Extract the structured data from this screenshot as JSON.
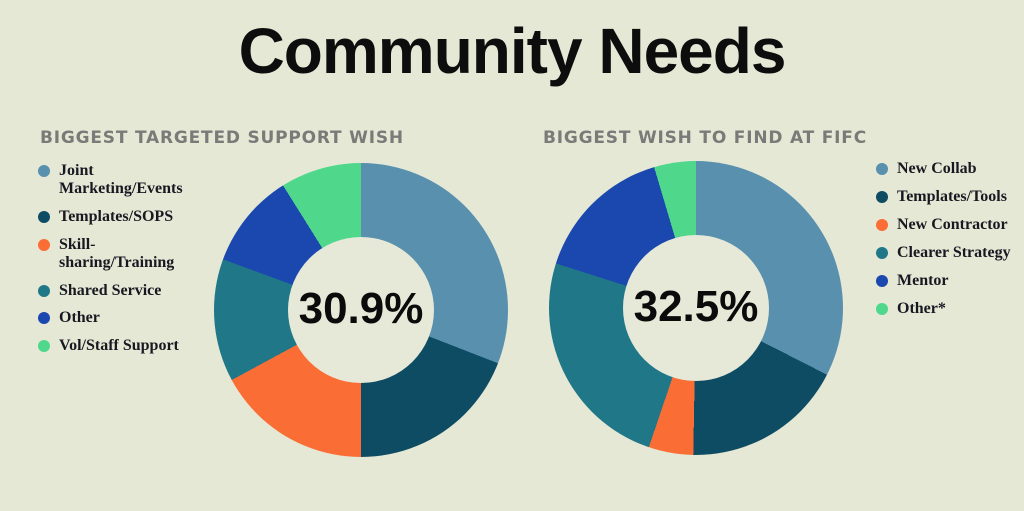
{
  "page": {
    "title": "Community Needs",
    "background": "#e6e8d6",
    "title_color": "#0d0d0d",
    "section_title_color": "#7a7a78",
    "legend_text_color": "#181821"
  },
  "chart_data": [
    {
      "type": "pie",
      "subtype": "donut",
      "title": "BIGGEST TARGETED SUPPORT WISH",
      "center_label": "30.9%",
      "legend_position": "left",
      "start_angle_deg": 0,
      "direction": "clockwise",
      "hole_ratio": 0.5,
      "labels": [
        "Joint Marketing/Events",
        "Templates/SOPS",
        "Skill-sharing/Training",
        "Shared Service",
        "Other",
        "Vol/Staff Support"
      ],
      "values": [
        30.9,
        19.1,
        17.1,
        13.5,
        10.5,
        8.9
      ],
      "colors": [
        "#5890ae",
        "#0e4c63",
        "#fa6e35",
        "#1f7787",
        "#1b48ae",
        "#4fd88c"
      ]
    },
    {
      "type": "pie",
      "subtype": "donut",
      "title": "BIGGEST WISH TO FIND AT FIFC",
      "center_label": "32.5%",
      "legend_position": "right",
      "start_angle_deg": 0,
      "direction": "clockwise",
      "hole_ratio": 0.5,
      "labels": [
        "New Collab",
        "Templates/Tools",
        "New Contractor",
        "Clearer Strategy",
        "Mentor",
        "Other*"
      ],
      "values": [
        32.5,
        17.8,
        4.9,
        24.7,
        15.5,
        4.6
      ],
      "colors": [
        "#5890ae",
        "#0e4c63",
        "#fa6e35",
        "#1f7787",
        "#1b48ae",
        "#4fd88c"
      ]
    }
  ]
}
